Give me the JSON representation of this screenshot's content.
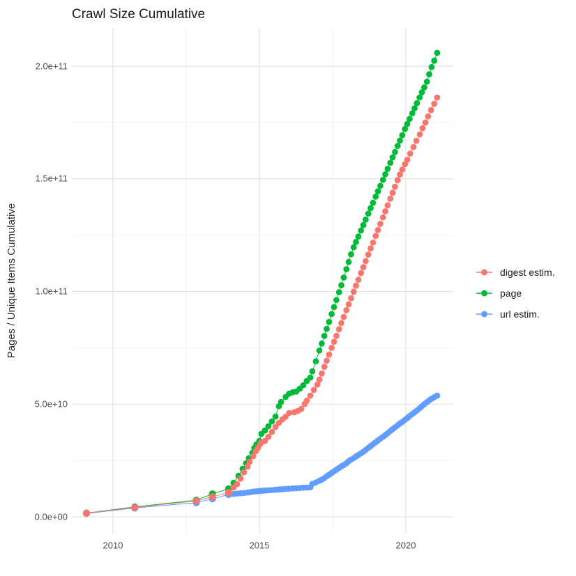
{
  "title": "Crawl Size Cumulative",
  "y_axis": {
    "title": "Pages / Unique Items Cumulative",
    "ticks": [
      {
        "value": 0,
        "label": "0.0e+00"
      },
      {
        "value": 50,
        "label": "5.0e+10"
      },
      {
        "value": 100,
        "label": "1.0e+11"
      },
      {
        "value": 150,
        "label": "1.5e+11"
      },
      {
        "value": 200,
        "label": "2.0e+11"
      }
    ],
    "minor_ticks": [
      25,
      75,
      125,
      175
    ],
    "range_billions": [
      -7.4,
      217
    ]
  },
  "x_axis": {
    "ticks": [
      {
        "value": 2010,
        "label": "2010"
      },
      {
        "value": 2015,
        "label": "2015"
      },
      {
        "value": 2020,
        "label": "2020"
      }
    ],
    "minor_ticks": [
      2012.5,
      2017.5
    ],
    "range_years": [
      2008.6,
      2021.62
    ]
  },
  "legend": {
    "items": [
      {
        "label": "digest estim.",
        "color": "#F8766D"
      },
      {
        "label": "page",
        "color": "#00BA38"
      },
      {
        "label": "url estim.",
        "color": "#619CFF"
      }
    ]
  },
  "colors": {
    "grid_major": "#e3e3e3",
    "grid_minor": "#efefef",
    "background": "#ffffff"
  },
  "chart_data": {
    "type": "scatter",
    "title": "Crawl Size Cumulative",
    "xlabel": "",
    "ylabel": "Pages / Unique Items Cumulative",
    "units": "billions (1e9) of pages / unique items, cumulative per crawl",
    "xlim": [
      2008.6,
      2021.62
    ],
    "ylim_billions": [
      -7.4,
      217
    ],
    "grid": true,
    "legend_position": "right",
    "draw_order": [
      1,
      2,
      0
    ],
    "series": [
      {
        "name": "digest estim.",
        "color": "#F8766D",
        "points": [
          [
            2009.1,
            1.6
          ],
          [
            2010.75,
            4.2
          ],
          [
            2012.85,
            7.1
          ],
          [
            2013.4,
            8.9
          ],
          [
            2013.95,
            10.8
          ],
          [
            2014.12,
            13.0
          ],
          [
            2014.24,
            14.5
          ],
          [
            2014.36,
            17.0
          ],
          [
            2014.48,
            19.8
          ],
          [
            2014.6,
            22.3
          ],
          [
            2014.67,
            24.4
          ],
          [
            2014.79,
            26.9
          ],
          [
            2014.88,
            29.1
          ],
          [
            2014.95,
            30.6
          ],
          [
            2015.02,
            32.1
          ],
          [
            2015.07,
            33.0
          ],
          [
            2015.19,
            33.7
          ],
          [
            2015.31,
            35.5
          ],
          [
            2015.43,
            37.7
          ],
          [
            2015.55,
            39.9
          ],
          [
            2015.67,
            41.7
          ],
          [
            2015.79,
            43.3
          ],
          [
            2015.9,
            44.5
          ],
          [
            2016.02,
            46.1
          ],
          [
            2016.19,
            46.4
          ],
          [
            2016.31,
            47.0
          ],
          [
            2016.43,
            47.9
          ],
          [
            2016.55,
            50.1
          ],
          [
            2016.62,
            51.6
          ],
          [
            2016.74,
            53.8
          ],
          [
            2016.86,
            56.3
          ],
          [
            2016.98,
            58.7
          ],
          [
            2017.05,
            60.9
          ],
          [
            2017.13,
            63.6
          ],
          [
            2017.22,
            66.6
          ],
          [
            2017.3,
            69.3
          ],
          [
            2017.38,
            72.0
          ],
          [
            2017.47,
            75.0
          ],
          [
            2017.55,
            77.7
          ],
          [
            2017.63,
            80.3
          ],
          [
            2017.72,
            83.3
          ],
          [
            2017.8,
            86.0
          ],
          [
            2017.88,
            88.7
          ],
          [
            2017.97,
            91.7
          ],
          [
            2018.05,
            94.3
          ],
          [
            2018.13,
            97.0
          ],
          [
            2018.22,
            99.9
          ],
          [
            2018.3,
            102.6
          ],
          [
            2018.38,
            105.2
          ],
          [
            2018.47,
            108.2
          ],
          [
            2018.55,
            110.8
          ],
          [
            2018.63,
            113.5
          ],
          [
            2018.72,
            116.4
          ],
          [
            2018.8,
            119.1
          ],
          [
            2018.88,
            121.7
          ],
          [
            2018.97,
            124.7
          ],
          [
            2019.05,
            127.3
          ],
          [
            2019.13,
            130.0
          ],
          [
            2019.22,
            132.9
          ],
          [
            2019.3,
            135.6
          ],
          [
            2019.38,
            138.2
          ],
          [
            2019.47,
            141.2
          ],
          [
            2019.55,
            143.8
          ],
          [
            2019.63,
            146.5
          ],
          [
            2019.72,
            149.4
          ],
          [
            2019.8,
            151.9
          ],
          [
            2019.88,
            154.1
          ],
          [
            2019.97,
            156.5
          ],
          [
            2020.05,
            158.5
          ],
          [
            2020.15,
            161.2
          ],
          [
            2020.26,
            164.1
          ],
          [
            2020.36,
            166.9
          ],
          [
            2020.48,
            169.7
          ],
          [
            2020.57,
            172.5
          ],
          [
            2020.67,
            175.0
          ],
          [
            2020.76,
            177.7
          ],
          [
            2020.86,
            180.5
          ],
          [
            2020.97,
            183.3
          ],
          [
            2021.07,
            186.1
          ]
        ]
      },
      {
        "name": "page",
        "color": "#00BA38",
        "points": [
          [
            2009.1,
            1.7
          ],
          [
            2010.75,
            4.4
          ],
          [
            2012.85,
            7.4
          ],
          [
            2013.4,
            10.2
          ],
          [
            2013.95,
            12.4
          ],
          [
            2014.12,
            15.1
          ],
          [
            2014.29,
            18.2
          ],
          [
            2014.43,
            21.3
          ],
          [
            2014.55,
            23.8
          ],
          [
            2014.64,
            26.0
          ],
          [
            2014.76,
            28.4
          ],
          [
            2014.83,
            30.6
          ],
          [
            2014.9,
            32.1
          ],
          [
            2015.0,
            33.7
          ],
          [
            2015.07,
            36.8
          ],
          [
            2015.19,
            38.3
          ],
          [
            2015.31,
            40.2
          ],
          [
            2015.43,
            42.3
          ],
          [
            2015.55,
            44.5
          ],
          [
            2015.67,
            49.1
          ],
          [
            2015.74,
            51.0
          ],
          [
            2015.9,
            53.2
          ],
          [
            2016.02,
            54.7
          ],
          [
            2016.14,
            55.3
          ],
          [
            2016.26,
            55.6
          ],
          [
            2016.38,
            56.9
          ],
          [
            2016.5,
            58.4
          ],
          [
            2016.62,
            60.3
          ],
          [
            2016.74,
            61.8
          ],
          [
            2016.81,
            64.6
          ],
          [
            2016.93,
            69.0
          ],
          [
            2017.05,
            73.8
          ],
          [
            2017.13,
            76.9
          ],
          [
            2017.22,
            80.3
          ],
          [
            2017.3,
            83.4
          ],
          [
            2017.38,
            86.5
          ],
          [
            2017.47,
            90.0
          ],
          [
            2017.55,
            93.1
          ],
          [
            2017.63,
            96.2
          ],
          [
            2017.72,
            99.7
          ],
          [
            2017.8,
            102.8
          ],
          [
            2017.88,
            106.2
          ],
          [
            2017.97,
            109.9
          ],
          [
            2018.05,
            113.1
          ],
          [
            2018.13,
            116.5
          ],
          [
            2018.22,
            119.6
          ],
          [
            2018.3,
            122.0
          ],
          [
            2018.38,
            124.4
          ],
          [
            2018.47,
            127.1
          ],
          [
            2018.55,
            129.5
          ],
          [
            2018.63,
            131.9
          ],
          [
            2018.72,
            134.6
          ],
          [
            2018.8,
            137.0
          ],
          [
            2018.88,
            139.4
          ],
          [
            2018.97,
            142.1
          ],
          [
            2019.05,
            144.5
          ],
          [
            2019.13,
            146.9
          ],
          [
            2019.22,
            149.6
          ],
          [
            2019.3,
            152.0
          ],
          [
            2019.38,
            154.4
          ],
          [
            2019.47,
            157.1
          ],
          [
            2019.55,
            159.5
          ],
          [
            2019.63,
            161.9
          ],
          [
            2019.72,
            164.6
          ],
          [
            2019.8,
            167.0
          ],
          [
            2019.88,
            169.4
          ],
          [
            2019.97,
            172.1
          ],
          [
            2020.05,
            174.3
          ],
          [
            2020.13,
            176.6
          ],
          [
            2020.22,
            179.1
          ],
          [
            2020.3,
            181.3
          ],
          [
            2020.38,
            183.6
          ],
          [
            2020.47,
            186.1
          ],
          [
            2020.55,
            188.4
          ],
          [
            2020.63,
            190.6
          ],
          [
            2020.72,
            193.1
          ],
          [
            2020.8,
            196.4
          ],
          [
            2020.88,
            199.6
          ],
          [
            2020.97,
            202.4
          ],
          [
            2021.07,
            205.9
          ]
        ]
      },
      {
        "name": "url estim.",
        "color": "#619CFF",
        "points": [
          [
            2009.1,
            1.5
          ],
          [
            2010.75,
            3.9
          ],
          [
            2012.85,
            6.3
          ],
          [
            2013.4,
            8.0
          ],
          [
            2013.95,
            9.9
          ],
          [
            2014.12,
            10.2
          ],
          [
            2014.24,
            10.3
          ],
          [
            2014.36,
            10.5
          ],
          [
            2014.48,
            10.6
          ],
          [
            2014.6,
            10.8
          ],
          [
            2014.7,
            11.0
          ],
          [
            2014.8,
            11.2
          ],
          [
            2014.88,
            11.3
          ],
          [
            2014.96,
            11.4
          ],
          [
            2015.04,
            11.5
          ],
          [
            2015.12,
            11.6
          ],
          [
            2015.21,
            11.7
          ],
          [
            2015.31,
            11.8
          ],
          [
            2015.43,
            11.9
          ],
          [
            2015.55,
            12.0
          ],
          [
            2015.64,
            12.1
          ],
          [
            2015.71,
            12.2
          ],
          [
            2015.79,
            12.3
          ],
          [
            2015.9,
            12.4
          ],
          [
            2016.02,
            12.5
          ],
          [
            2016.14,
            12.6
          ],
          [
            2016.26,
            12.7
          ],
          [
            2016.38,
            12.8
          ],
          [
            2016.5,
            12.9
          ],
          [
            2016.62,
            13.0
          ],
          [
            2016.74,
            13.1
          ],
          [
            2016.81,
            14.6
          ],
          [
            2016.93,
            15.3
          ],
          [
            2017.05,
            16.0
          ],
          [
            2017.13,
            16.5
          ],
          [
            2017.22,
            17.2
          ],
          [
            2017.3,
            18.0
          ],
          [
            2017.38,
            18.7
          ],
          [
            2017.47,
            19.5
          ],
          [
            2017.55,
            20.2
          ],
          [
            2017.63,
            20.9
          ],
          [
            2017.72,
            21.7
          ],
          [
            2017.8,
            22.4
          ],
          [
            2017.88,
            23.0
          ],
          [
            2017.97,
            23.8
          ],
          [
            2018.05,
            24.7
          ],
          [
            2018.13,
            25.4
          ],
          [
            2018.22,
            26.1
          ],
          [
            2018.3,
            26.8
          ],
          [
            2018.38,
            27.4
          ],
          [
            2018.47,
            28.2
          ],
          [
            2018.55,
            28.9
          ],
          [
            2018.63,
            29.7
          ],
          [
            2018.72,
            30.6
          ],
          [
            2018.8,
            31.4
          ],
          [
            2018.88,
            32.2
          ],
          [
            2018.97,
            33.1
          ],
          [
            2019.05,
            33.9
          ],
          [
            2019.13,
            34.7
          ],
          [
            2019.22,
            35.5
          ],
          [
            2019.3,
            36.3
          ],
          [
            2019.38,
            37.1
          ],
          [
            2019.47,
            38.1
          ],
          [
            2019.55,
            38.9
          ],
          [
            2019.63,
            39.7
          ],
          [
            2019.72,
            40.6
          ],
          [
            2019.8,
            41.4
          ],
          [
            2019.88,
            42.1
          ],
          [
            2019.97,
            43.0
          ],
          [
            2020.05,
            43.8
          ],
          [
            2020.13,
            44.7
          ],
          [
            2020.22,
            45.6
          ],
          [
            2020.3,
            46.4
          ],
          [
            2020.38,
            47.2
          ],
          [
            2020.47,
            48.2
          ],
          [
            2020.55,
            49.1
          ],
          [
            2020.63,
            50.0
          ],
          [
            2020.72,
            50.9
          ],
          [
            2020.8,
            51.7
          ],
          [
            2020.88,
            52.4
          ],
          [
            2020.97,
            53.1
          ],
          [
            2021.07,
            53.8
          ]
        ]
      }
    ]
  }
}
